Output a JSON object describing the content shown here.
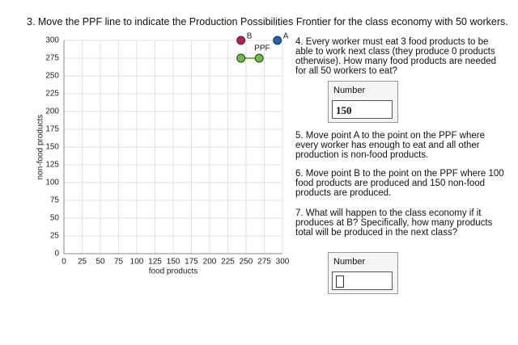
{
  "question": "3. Move the PPF line to indicate the Production Possibilities Frontier for the class economy with 50 workers.",
  "chart_data": {
    "type": "scatter",
    "xlabel": "food products",
    "ylabel": "non-food products",
    "xlim": [
      0,
      300
    ],
    "ylim": [
      0,
      300
    ],
    "xticks": [
      0,
      25,
      50,
      75,
      100,
      125,
      150,
      175,
      200,
      225,
      250,
      275,
      300
    ],
    "yticks": [
      0,
      25,
      50,
      75,
      100,
      125,
      150,
      175,
      200,
      225,
      250,
      275,
      300
    ],
    "grid": true,
    "points": [
      {
        "label": "B",
        "x": 243,
        "y": 300,
        "color": "#c2185b"
      },
      {
        "label": "A",
        "x": 293,
        "y": 300,
        "color": "#1565c0"
      }
    ],
    "ppf": {
      "label": "PPF",
      "x": [
        243,
        268
      ],
      "y": [
        275,
        275
      ],
      "color": "#6abf3c"
    }
  },
  "questions": [
    "4. Every worker must eat 3 food products to be able to work next class (they produce 0 products otherwise). How many food products are needed for all 50 workers to eat?",
    "5. Move point A to the point on the PPF where every worker has enough to eat and all other production is non-food products.",
    "6. Move point B to the point on the PPF where 100 food products are produced and 150 non-food products are produced.",
    "7. What will happen to the class economy if it produces at B? Specifically, how many products total will be produced in the next class?"
  ],
  "answers": [
    {
      "label": "Number",
      "value": "150"
    },
    {
      "label": "Number"
    }
  ]
}
